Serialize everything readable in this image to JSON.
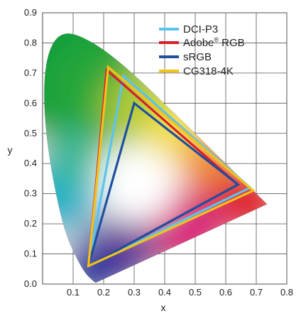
{
  "chart_data": {
    "type": "scatter",
    "title": "",
    "xlabel": "x",
    "ylabel": "y",
    "xlim": [
      0,
      0.8
    ],
    "ylim": [
      0,
      0.9
    ],
    "x_ticks": [
      "0.1",
      "0.2",
      "0.3",
      "0.4",
      "0.5",
      "0.6",
      "0.7",
      "0.8"
    ],
    "y_ticks": [
      "0.0",
      "0.1",
      "0.2",
      "0.3",
      "0.4",
      "0.5",
      "0.6",
      "0.7",
      "0.8",
      "0.9"
    ],
    "grid": true,
    "legend_position": "top-right",
    "spectral_locus": [
      [
        0.175,
        0.005
      ],
      [
        0.174,
        0.005
      ],
      [
        0.17,
        0.007
      ],
      [
        0.16,
        0.016
      ],
      [
        0.145,
        0.03
      ],
      [
        0.125,
        0.06
      ],
      [
        0.1,
        0.11
      ],
      [
        0.085,
        0.145
      ],
      [
        0.065,
        0.205
      ],
      [
        0.045,
        0.295
      ],
      [
        0.023,
        0.412
      ],
      [
        0.008,
        0.538
      ],
      [
        0.004,
        0.655
      ],
      [
        0.014,
        0.75
      ],
      [
        0.039,
        0.812
      ],
      [
        0.074,
        0.834
      ],
      [
        0.114,
        0.826
      ],
      [
        0.155,
        0.806
      ],
      [
        0.193,
        0.782
      ],
      [
        0.23,
        0.754
      ],
      [
        0.266,
        0.724
      ],
      [
        0.302,
        0.692
      ],
      [
        0.337,
        0.659
      ],
      [
        0.373,
        0.624
      ],
      [
        0.408,
        0.589
      ],
      [
        0.444,
        0.554
      ],
      [
        0.479,
        0.52
      ],
      [
        0.512,
        0.487
      ],
      [
        0.545,
        0.454
      ],
      [
        0.575,
        0.424
      ],
      [
        0.603,
        0.397
      ],
      [
        0.627,
        0.373
      ],
      [
        0.648,
        0.351
      ],
      [
        0.666,
        0.334
      ],
      [
        0.68,
        0.32
      ],
      [
        0.692,
        0.308
      ],
      [
        0.735,
        0.265
      ]
    ],
    "series": [
      {
        "name": "DCI-P3",
        "color": "#5bc4ec",
        "points": [
          [
            0.68,
            0.32
          ],
          [
            0.265,
            0.69
          ],
          [
            0.15,
            0.06
          ]
        ]
      },
      {
        "name": "Adobe® RGB",
        "color": "#d6202a",
        "points": [
          [
            0.64,
            0.33
          ],
          [
            0.21,
            0.71
          ],
          [
            0.15,
            0.06
          ]
        ]
      },
      {
        "name": "sRGB",
        "color": "#1f4fa0",
        "points": [
          [
            0.64,
            0.33
          ],
          [
            0.3,
            0.6
          ],
          [
            0.15,
            0.06
          ]
        ]
      },
      {
        "name": "CG318-4K",
        "color": "#f2c21b",
        "points": [
          [
            0.69,
            0.31
          ],
          [
            0.215,
            0.72
          ],
          [
            0.15,
            0.06
          ]
        ]
      }
    ]
  },
  "legend": [
    {
      "label": "DCI-P3"
    },
    {
      "label": "Adobe",
      "sup": "®",
      "suffix": " RGB"
    },
    {
      "label": "sRGB"
    },
    {
      "label": "CG318-4K"
    }
  ]
}
